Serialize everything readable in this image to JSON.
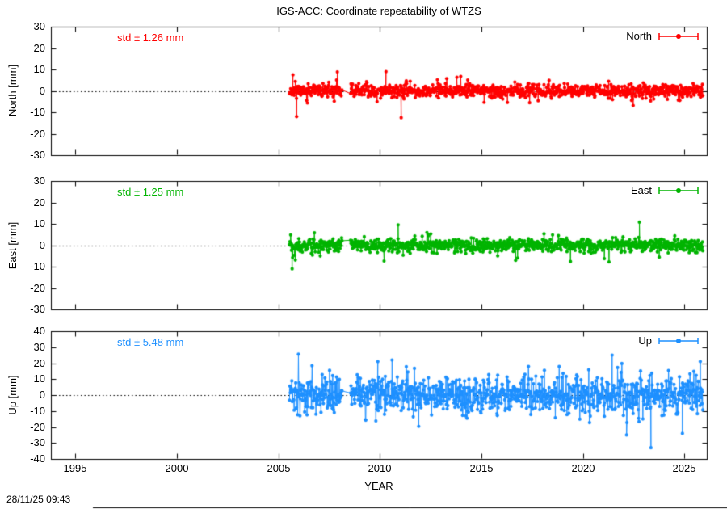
{
  "figure": {
    "title": "IGS-ACC: Coordinate repeatability of WTZS",
    "timestamp": "28/11/25 09:43",
    "xlabel": "YEAR"
  },
  "chart_data": {
    "type": "scatter",
    "title": "IGS-ACC: Coordinate repeatability of WTZS",
    "xlabel": "YEAR",
    "legend_position": "top-right",
    "grid": false,
    "zero_line": "dotted",
    "x_range": [
      1993.8,
      2026.1
    ],
    "x_ticks": [
      1995,
      2000,
      2005,
      2010,
      2015,
      2020,
      2025
    ],
    "data_start": 2005.55,
    "data_end": 2025.92,
    "sample_interval_years": 0.019165,
    "gaps": [
      [
        2008.15,
        2008.55
      ]
    ],
    "panels": [
      {
        "name": "North",
        "ylabel": "North [mm]",
        "legend": "North",
        "std_label": "std ± 1.26 mm",
        "std_mm": 1.26,
        "color": "#ff0000",
        "y_range": [
          -30,
          30
        ],
        "y_ticks": [
          -30,
          -20,
          -10,
          0,
          10,
          20,
          30
        ],
        "spread": {
          "core_std": 1.5,
          "tail_rate": 0.06,
          "tail_std": 3.6
        },
        "outliers": [
          [
            2005.72,
            7.5
          ],
          [
            2005.9,
            -12
          ],
          [
            2010.3,
            9
          ],
          [
            2011.05,
            -12.5
          ]
        ],
        "seed": 11
      },
      {
        "name": "East",
        "ylabel": "East [mm]",
        "legend": "East",
        "std_label": "std ± 1.25 mm",
        "std_mm": 1.25,
        "color": "#00b400",
        "y_range": [
          -30,
          30
        ],
        "y_ticks": [
          -30,
          -20,
          -10,
          0,
          10,
          20,
          30
        ],
        "spread": {
          "core_std": 1.5,
          "tail_rate": 0.06,
          "tail_std": 3.4
        },
        "outliers": [
          [
            2005.68,
            -11
          ],
          [
            2010.9,
            9.5
          ],
          [
            2022.78,
            10.8
          ]
        ],
        "seed": 22
      },
      {
        "name": "Up",
        "ylabel": "Up [mm]",
        "legend": "Up",
        "std_label": "std ± 5.48 mm",
        "std_mm": 5.48,
        "color": "#1e90ff",
        "y_range": [
          -40,
          40
        ],
        "y_ticks": [
          -40,
          -30,
          -20,
          -10,
          0,
          10,
          20,
          30,
          40
        ],
        "spread": {
          "core_std": 5.6,
          "tail_rate": 0.1,
          "tail_std": 10.5
        },
        "outliers": [
          [
            2009.9,
            21
          ],
          [
            2010.6,
            22
          ],
          [
            2022.15,
            -25
          ],
          [
            2023.35,
            -33
          ],
          [
            2024.9,
            -24
          ],
          [
            2025.78,
            21
          ]
        ],
        "seed": 33
      }
    ]
  }
}
